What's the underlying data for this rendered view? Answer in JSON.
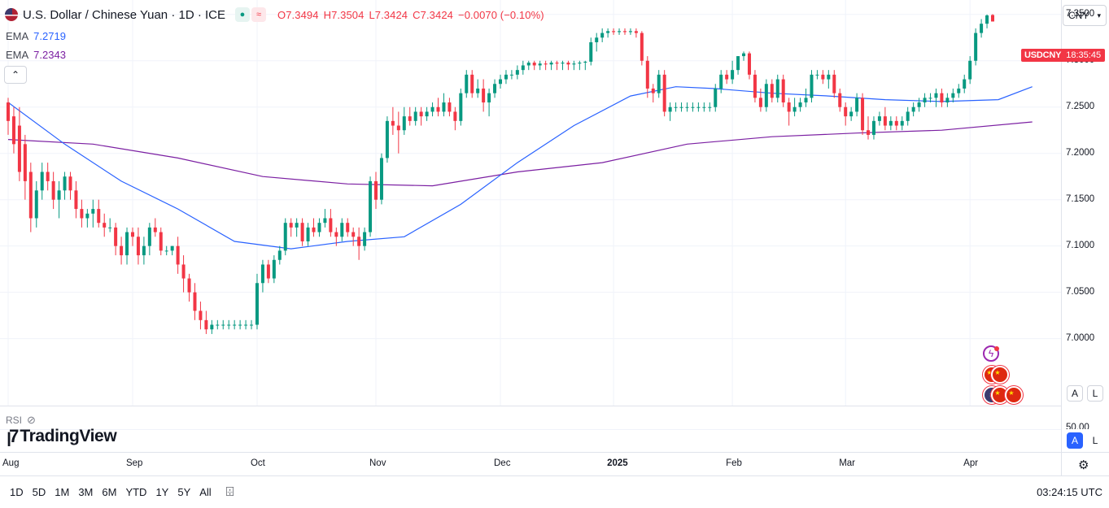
{
  "header": {
    "title": "U.S. Dollar / Chinese Yuan · 1D · ICE",
    "ohlc": {
      "open": "O7.3494",
      "high": "H7.3504",
      "low": "L7.3424",
      "close": "C7.3424",
      "change": "−0.0070 (−0.10%)"
    }
  },
  "ema": [
    {
      "label": "EMA",
      "value": "7.2719",
      "color": "#2962ff"
    },
    {
      "label": "EMA",
      "value": "7.2343",
      "color": "#7b1fa2"
    }
  ],
  "currency_button": "CNY",
  "price_tag": {
    "symbol": "USDCNY",
    "countdown": "18:35:45"
  },
  "price_scale": {
    "ticks": [
      "7.3500",
      "7.3000",
      "7.2500",
      "7.2000",
      "7.1500",
      "7.1000",
      "7.0500",
      "7.0000"
    ],
    "rsi_tick": "50.00"
  },
  "scale_buttons": {
    "auto": "A",
    "log": "L"
  },
  "rsi_label": "RSI",
  "brand": "TradingView",
  "time_axis": [
    "Aug",
    "Sep",
    "Oct",
    "Nov",
    "Dec",
    "2025",
    "Feb",
    "Mar",
    "Apr"
  ],
  "timeframes": [
    "1D",
    "5D",
    "1M",
    "3M",
    "6M",
    "YTD",
    "1Y",
    "5Y",
    "All"
  ],
  "clock": "03:24:15 UTC",
  "colors": {
    "up": "#089981",
    "down": "#f23645",
    "ema_fast": "#2962ff",
    "ema_slow": "#7b1fa2",
    "grid": "#f0f3fa"
  },
  "chart_data": {
    "type": "candlestick",
    "title": "U.S. Dollar / Chinese Yuan · 1D · ICE",
    "ylim": [
      6.94,
      7.37
    ],
    "x_labels": [
      "Aug",
      "Sep",
      "Oct",
      "Nov",
      "Dec",
      "2025",
      "Feb",
      "Mar",
      "Apr"
    ],
    "candles": [
      [
        7.255,
        7.26,
        7.22,
        7.235
      ],
      [
        7.24,
        7.25,
        7.2,
        7.21
      ],
      [
        7.23,
        7.25,
        7.17,
        7.18
      ],
      [
        7.21,
        7.22,
        7.15,
        7.17
      ],
      [
        7.18,
        7.19,
        7.115,
        7.13
      ],
      [
        7.13,
        7.17,
        7.12,
        7.16
      ],
      [
        7.16,
        7.19,
        7.15,
        7.18
      ],
      [
        7.18,
        7.19,
        7.16,
        7.17
      ],
      [
        7.17,
        7.18,
        7.14,
        7.15
      ],
      [
        7.15,
        7.17,
        7.13,
        7.16
      ],
      [
        7.16,
        7.18,
        7.15,
        7.175
      ],
      [
        7.175,
        7.18,
        7.15,
        7.16
      ],
      [
        7.16,
        7.17,
        7.13,
        7.14
      ],
      [
        7.14,
        7.15,
        7.12,
        7.13
      ],
      [
        7.13,
        7.14,
        7.12,
        7.135
      ],
      [
        7.135,
        7.15,
        7.12,
        7.14
      ],
      [
        7.14,
        7.15,
        7.12,
        7.125
      ],
      [
        7.125,
        7.135,
        7.11,
        7.12
      ],
      [
        7.12,
        7.13,
        7.115,
        7.12
      ],
      [
        7.12,
        7.125,
        7.09,
        7.1
      ],
      [
        7.1,
        7.11,
        7.08,
        7.09
      ],
      [
        7.09,
        7.12,
        7.08,
        7.115
      ],
      [
        7.115,
        7.12,
        7.1,
        7.11
      ],
      [
        7.11,
        7.12,
        7.08,
        7.09
      ],
      [
        7.09,
        7.11,
        7.08,
        7.1
      ],
      [
        7.1,
        7.125,
        7.09,
        7.12
      ],
      [
        7.12,
        7.13,
        7.11,
        7.115
      ],
      [
        7.115,
        7.12,
        7.09,
        7.095
      ],
      [
        7.095,
        7.1,
        7.09,
        7.095
      ],
      [
        7.095,
        7.1,
        7.09,
        7.1
      ],
      [
        7.1,
        7.11,
        7.07,
        7.08
      ],
      [
        7.08,
        7.09,
        7.05,
        7.065
      ],
      [
        7.065,
        7.07,
        7.04,
        7.05
      ],
      [
        7.05,
        7.06,
        7.02,
        7.03
      ],
      [
        7.03,
        7.04,
        7.01,
        7.02
      ],
      [
        7.02,
        7.03,
        7.005,
        7.01
      ],
      [
        7.01,
        7.02,
        7.005,
        7.015
      ],
      [
        7.015,
        7.02,
        7.01,
        7.015
      ],
      [
        7.015,
        7.02,
        7.01,
        7.015
      ],
      [
        7.015,
        7.02,
        7.01,
        7.015
      ],
      [
        7.015,
        7.02,
        7.01,
        7.015
      ],
      [
        7.015,
        7.02,
        7.01,
        7.015
      ],
      [
        7.015,
        7.02,
        7.01,
        7.015
      ],
      [
        7.015,
        7.02,
        7.01,
        7.015
      ],
      [
        7.015,
        7.07,
        7.01,
        7.06
      ],
      [
        7.06,
        7.085,
        7.05,
        7.08
      ],
      [
        7.08,
        7.085,
        7.06,
        7.065
      ],
      [
        7.065,
        7.09,
        7.06,
        7.085
      ],
      [
        7.085,
        7.1,
        7.08,
        7.095
      ],
      [
        7.095,
        7.13,
        7.09,
        7.125
      ],
      [
        7.125,
        7.13,
        7.11,
        7.12
      ],
      [
        7.12,
        7.13,
        7.11,
        7.125
      ],
      [
        7.125,
        7.13,
        7.1,
        7.105
      ],
      [
        7.105,
        7.125,
        7.1,
        7.12
      ],
      [
        7.12,
        7.13,
        7.11,
        7.115
      ],
      [
        7.115,
        7.13,
        7.11,
        7.125
      ],
      [
        7.125,
        7.14,
        7.12,
        7.13
      ],
      [
        7.13,
        7.14,
        7.11,
        7.115
      ],
      [
        7.115,
        7.12,
        7.1,
        7.11
      ],
      [
        7.11,
        7.13,
        7.105,
        7.125
      ],
      [
        7.125,
        7.13,
        7.11,
        7.115
      ],
      [
        7.115,
        7.12,
        7.1,
        7.11
      ],
      [
        7.11,
        7.12,
        7.085,
        7.1
      ],
      [
        7.1,
        7.12,
        7.095,
        7.115
      ],
      [
        7.115,
        7.175,
        7.11,
        7.17
      ],
      [
        7.17,
        7.18,
        7.14,
        7.15
      ],
      [
        7.15,
        7.2,
        7.145,
        7.195
      ],
      [
        7.195,
        7.24,
        7.19,
        7.235
      ],
      [
        7.235,
        7.25,
        7.22,
        7.23
      ],
      [
        7.23,
        7.245,
        7.2,
        7.225
      ],
      [
        7.225,
        7.25,
        7.22,
        7.24
      ],
      [
        7.24,
        7.25,
        7.23,
        7.235
      ],
      [
        7.235,
        7.25,
        7.23,
        7.245
      ],
      [
        7.245,
        7.25,
        7.23,
        7.24
      ],
      [
        7.24,
        7.25,
        7.235,
        7.245
      ],
      [
        7.245,
        7.255,
        7.24,
        7.25
      ],
      [
        7.25,
        7.26,
        7.24,
        7.245
      ],
      [
        7.245,
        7.265,
        7.24,
        7.255
      ],
      [
        7.255,
        7.26,
        7.24,
        7.245
      ],
      [
        7.245,
        7.25,
        7.225,
        7.235
      ],
      [
        7.235,
        7.27,
        7.23,
        7.265
      ],
      [
        7.265,
        7.29,
        7.26,
        7.285
      ],
      [
        7.285,
        7.29,
        7.26,
        7.265
      ],
      [
        7.265,
        7.28,
        7.26,
        7.27
      ],
      [
        7.27,
        7.28,
        7.245,
        7.255
      ],
      [
        7.255,
        7.27,
        7.24,
        7.265
      ],
      [
        7.265,
        7.28,
        7.26,
        7.275
      ],
      [
        7.275,
        7.285,
        7.27,
        7.28
      ],
      [
        7.28,
        7.29,
        7.275,
        7.285
      ],
      [
        7.285,
        7.29,
        7.28,
        7.285
      ],
      [
        7.285,
        7.295,
        7.28,
        7.29
      ],
      [
        7.29,
        7.3,
        7.285,
        7.295
      ],
      [
        7.295,
        7.3,
        7.29,
        7.298
      ],
      [
        7.298,
        7.3,
        7.29,
        7.295
      ],
      [
        7.295,
        7.3,
        7.29,
        7.297
      ],
      [
        7.297,
        7.3,
        7.29,
        7.296
      ],
      [
        7.296,
        7.3,
        7.29,
        7.298
      ],
      [
        7.298,
        7.3,
        7.29,
        7.297
      ],
      [
        7.297,
        7.3,
        7.29,
        7.298
      ],
      [
        7.298,
        7.3,
        7.29,
        7.296
      ],
      [
        7.296,
        7.3,
        7.29,
        7.297
      ],
      [
        7.297,
        7.3,
        7.29,
        7.298
      ],
      [
        7.298,
        7.3,
        7.29,
        7.299
      ],
      [
        7.299,
        7.325,
        7.295,
        7.32
      ],
      [
        7.32,
        7.33,
        7.31,
        7.325
      ],
      [
        7.325,
        7.335,
        7.32,
        7.33
      ],
      [
        7.33,
        7.335,
        7.325,
        7.332
      ],
      [
        7.332,
        7.335,
        7.328,
        7.331
      ],
      [
        7.331,
        7.335,
        7.328,
        7.332
      ],
      [
        7.332,
        7.335,
        7.328,
        7.331
      ],
      [
        7.331,
        7.335,
        7.328,
        7.332
      ],
      [
        7.332,
        7.335,
        7.325,
        7.33
      ],
      [
        7.33,
        7.332,
        7.295,
        7.3
      ],
      [
        7.3,
        7.305,
        7.26,
        7.27
      ],
      [
        7.27,
        7.275,
        7.255,
        7.265
      ],
      [
        7.265,
        7.29,
        7.26,
        7.285
      ],
      [
        7.285,
        7.29,
        7.24,
        7.245
      ],
      [
        7.245,
        7.255,
        7.235,
        7.25
      ],
      [
        7.25,
        7.255,
        7.245,
        7.25
      ],
      [
        7.25,
        7.255,
        7.245,
        7.25
      ],
      [
        7.25,
        7.255,
        7.245,
        7.25
      ],
      [
        7.25,
        7.255,
        7.245,
        7.25
      ],
      [
        7.25,
        7.255,
        7.245,
        7.25
      ],
      [
        7.25,
        7.255,
        7.245,
        7.25
      ],
      [
        7.25,
        7.255,
        7.245,
        7.25
      ],
      [
        7.25,
        7.275,
        7.245,
        7.27
      ],
      [
        7.27,
        7.29,
        7.265,
        7.285
      ],
      [
        7.285,
        7.29,
        7.275,
        7.28
      ],
      [
        7.28,
        7.3,
        7.275,
        7.29
      ],
      [
        7.29,
        7.305,
        7.285,
        7.305
      ],
      [
        7.305,
        7.31,
        7.3,
        7.308
      ],
      [
        7.308,
        7.31,
        7.28,
        7.285
      ],
      [
        7.285,
        7.29,
        7.255,
        7.26
      ],
      [
        7.26,
        7.27,
        7.245,
        7.25
      ],
      [
        7.25,
        7.28,
        7.245,
        7.275
      ],
      [
        7.275,
        7.28,
        7.255,
        7.26
      ],
      [
        7.26,
        7.285,
        7.255,
        7.28
      ],
      [
        7.28,
        7.285,
        7.25,
        7.255
      ],
      [
        7.255,
        7.26,
        7.23,
        7.245
      ],
      [
        7.245,
        7.26,
        7.24,
        7.25
      ],
      [
        7.25,
        7.26,
        7.245,
        7.255
      ],
      [
        7.255,
        7.27,
        7.25,
        7.26
      ],
      [
        7.26,
        7.29,
        7.255,
        7.285
      ],
      [
        7.285,
        7.29,
        7.28,
        7.285
      ],
      [
        7.285,
        7.29,
        7.275,
        7.28
      ],
      [
        7.28,
        7.29,
        7.27,
        7.285
      ],
      [
        7.285,
        7.29,
        7.26,
        7.265
      ],
      [
        7.265,
        7.27,
        7.245,
        7.25
      ],
      [
        7.25,
        7.255,
        7.23,
        7.24
      ],
      [
        7.24,
        7.25,
        7.235,
        7.245
      ],
      [
        7.245,
        7.265,
        7.24,
        7.26
      ],
      [
        7.26,
        7.265,
        7.22,
        7.225
      ],
      [
        7.225,
        7.24,
        7.215,
        7.22
      ],
      [
        7.22,
        7.24,
        7.215,
        7.235
      ],
      [
        7.235,
        7.245,
        7.23,
        7.24
      ],
      [
        7.24,
        7.25,
        7.225,
        7.23
      ],
      [
        7.23,
        7.24,
        7.225,
        7.235
      ],
      [
        7.235,
        7.24,
        7.225,
        7.23
      ],
      [
        7.23,
        7.24,
        7.225,
        7.235
      ],
      [
        7.235,
        7.25,
        7.23,
        7.245
      ],
      [
        7.245,
        7.255,
        7.24,
        7.25
      ],
      [
        7.25,
        7.26,
        7.245,
        7.255
      ],
      [
        7.255,
        7.265,
        7.25,
        7.26
      ],
      [
        7.26,
        7.265,
        7.255,
        7.26
      ],
      [
        7.26,
        7.27,
        7.25,
        7.265
      ],
      [
        7.265,
        7.27,
        7.25,
        7.255
      ],
      [
        7.255,
        7.265,
        7.25,
        7.26
      ],
      [
        7.26,
        7.27,
        7.255,
        7.265
      ],
      [
        7.265,
        7.275,
        7.26,
        7.27
      ],
      [
        7.27,
        7.285,
        7.265,
        7.28
      ],
      [
        7.28,
        7.305,
        7.275,
        7.3
      ],
      [
        7.3,
        7.335,
        7.295,
        7.33
      ],
      [
        7.33,
        7.345,
        7.325,
        7.34
      ],
      [
        7.34,
        7.35,
        7.335,
        7.349
      ],
      [
        7.3494,
        7.3504,
        7.3424,
        7.3424
      ]
    ],
    "ema_fast": [
      [
        0,
        7.255
      ],
      [
        10,
        7.21
      ],
      [
        20,
        7.17
      ],
      [
        30,
        7.14
      ],
      [
        40,
        7.105
      ],
      [
        50,
        7.097
      ],
      [
        60,
        7.105
      ],
      [
        70,
        7.11
      ],
      [
        80,
        7.145
      ],
      [
        90,
        7.19
      ],
      [
        100,
        7.23
      ],
      [
        110,
        7.262
      ],
      [
        118,
        7.272
      ],
      [
        125,
        7.27
      ],
      [
        135,
        7.265
      ],
      [
        145,
        7.262
      ],
      [
        155,
        7.258
      ],
      [
        165,
        7.256
      ],
      [
        175,
        7.258
      ],
      [
        181,
        7.272
      ]
    ],
    "ema_slow": [
      [
        0,
        7.215
      ],
      [
        15,
        7.21
      ],
      [
        30,
        7.195
      ],
      [
        45,
        7.175
      ],
      [
        60,
        7.167
      ],
      [
        75,
        7.165
      ],
      [
        90,
        7.18
      ],
      [
        105,
        7.19
      ],
      [
        120,
        7.21
      ],
      [
        135,
        7.218
      ],
      [
        150,
        7.222
      ],
      [
        165,
        7.225
      ],
      [
        181,
        7.234
      ]
    ]
  }
}
